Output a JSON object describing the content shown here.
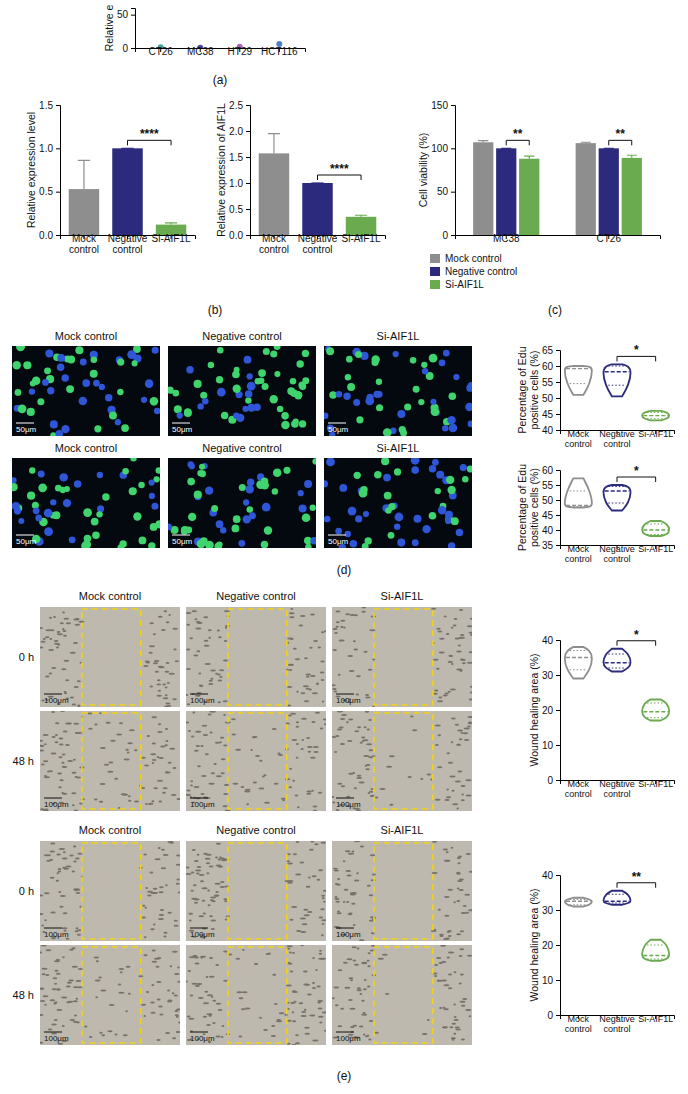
{
  "panel_labels": [
    "(a)",
    "(b)",
    "(c)",
    "(d)",
    "(e)"
  ],
  "image_grids": [
    {
      "column_titles": [
        "Mock control",
        "Negative control",
        "Si-AIF1L"
      ],
      "scale_bar": "50μm"
    },
    {
      "column_titles": [
        "Mock control",
        "Negative control",
        "Si-AIF1L"
      ],
      "scale_bar": "50μm"
    },
    {
      "column_titles": [
        "Mock control",
        "Negative control",
        "Si-AIF1L"
      ],
      "row_labels": [
        "0 h",
        "48 h"
      ],
      "scale_bar": "100μm"
    },
    {
      "column_titles": [
        "Mock control",
        "Negative control",
        "Si-AIF1L"
      ],
      "row_labels": [
        "0 h",
        "48 h"
      ],
      "scale_bar": "100μm"
    }
  ],
  "chart_data": [
    {
      "type": "dot",
      "y_label": "Relative e",
      "categories": [
        "CT26",
        "MC38",
        "HT29",
        "HCT116"
      ],
      "values": [
        1,
        0.5,
        2,
        6
      ],
      "errors": [
        0.6,
        0.3,
        1,
        3
      ],
      "colors": [
        "#3fa89c",
        "#4b4aa0",
        "#b066b0",
        "#4c82c4"
      ],
      "ylim": [
        0,
        60
      ],
      "yticks": [
        0,
        50
      ]
    },
    {
      "type": "bar",
      "y_label": "Relative expression level",
      "categories": [
        "Mock control",
        "Negative control",
        "Si-AIF1L"
      ],
      "values": [
        0.53,
        1,
        0.12
      ],
      "errors": [
        0.33,
        0,
        0.02
      ],
      "colors": [
        "#8e8e8e",
        "#2b2a7d",
        "#6aab4f"
      ],
      "ylim": [
        0,
        1.5
      ],
      "yticks": [
        {
          "value": 0,
          "label": "0.0"
        },
        0.5,
        {
          "value": 1,
          "label": "1.0"
        },
        1.5
      ],
      "annotations": [
        {
          "text": "****",
          "pair": [
            1,
            2
          ]
        }
      ]
    },
    {
      "type": "bar",
      "y_label": "Relative expression of AIF1L",
      "categories": [
        "Mock control",
        "Negative control",
        "Si-AIF1L"
      ],
      "values": [
        1.57,
        1,
        0.35
      ],
      "errors": [
        0.38,
        0,
        0.03
      ],
      "colors": [
        "#8e8e8e",
        "#2b2a7d",
        "#6aab4f"
      ],
      "ylim": [
        0,
        2.5
      ],
      "yticks": [
        {
          "value": 0,
          "label": "0.0"
        },
        0.5,
        {
          "value": 1,
          "label": "1.0"
        },
        1.5,
        {
          "value": 2,
          "label": "2.0"
        },
        2.5
      ],
      "annotations": [
        {
          "text": "****",
          "pair": [
            1,
            2
          ]
        }
      ]
    },
    {
      "type": "bar",
      "y_label": "Cell viability (%)",
      "categories": [
        "MC38",
        "CT26"
      ],
      "series": [
        {
          "name": "Mock control",
          "color": "#8e8e8e",
          "values": [
            107,
            106
          ],
          "errors": [
            2,
            1
          ]
        },
        {
          "name": "Negative control",
          "color": "#2b2a7d",
          "values": [
            100,
            100
          ],
          "errors": [
            0,
            0
          ]
        },
        {
          "name": "Si-AIF1L",
          "color": "#6aab4f",
          "values": [
            88,
            89
          ],
          "errors": [
            3,
            3
          ]
        }
      ],
      "ylim": [
        0,
        150
      ],
      "yticks": [
        0,
        50,
        100,
        150
      ],
      "legend": "bottom",
      "annotations": [
        {
          "text": "**",
          "group": 0,
          "pair": [
            1,
            2
          ]
        },
        {
          "text": "**",
          "group": 1,
          "pair": [
            1,
            2
          ]
        }
      ]
    },
    {
      "type": "violin",
      "y_label": "Percentage of Edu positive cells (%)",
      "categories": [
        "Mock control",
        "Negative control",
        "Si-AIF1L"
      ],
      "colors": [
        "#8e8e8e",
        "#2b2a7d",
        "#6aab4f"
      ],
      "min": [
        51,
        50.5,
        43
      ],
      "q1": [
        54.5,
        54,
        43.5
      ],
      "median": [
        59.2,
        58.2,
        44.5
      ],
      "q3": [
        59.8,
        60,
        45.5
      ],
      "max": [
        60,
        60.5,
        46
      ],
      "ylim": [
        40,
        65
      ],
      "yticks": [
        40,
        45,
        50,
        55,
        60,
        65
      ],
      "annotations": [
        {
          "text": "*",
          "pair": [
            1,
            2
          ]
        }
      ]
    },
    {
      "type": "violin",
      "y_label": "Percentage of Edu positive cells (%)",
      "categories": [
        "Mock control",
        "Negative control",
        "Si-AIF1L"
      ],
      "colors": [
        "#8e8e8e",
        "#2b2a7d",
        "#6aab4f"
      ],
      "min": [
        47.5,
        46.5,
        38
      ],
      "q1": [
        47.8,
        49,
        38.5
      ],
      "median": [
        48.2,
        53,
        40
      ],
      "q3": [
        53,
        54.5,
        42
      ],
      "max": [
        57.2,
        55,
        43
      ],
      "ylim": [
        35,
        60
      ],
      "yticks": [
        35,
        40,
        45,
        50,
        55,
        60
      ],
      "annotations": [
        {
          "text": "*",
          "pair": [
            1,
            2
          ]
        }
      ]
    },
    {
      "type": "violin",
      "y_label": "Wound healing area (%)",
      "categories": [
        "Mock control",
        "Negative control",
        "Si-AIF1L"
      ],
      "colors": [
        "#8e8e8e",
        "#2b2a7d",
        "#6aab4f"
      ],
      "min": [
        29,
        31,
        17
      ],
      "q1": [
        31.5,
        32,
        17.8
      ],
      "median": [
        35,
        33.5,
        19.5
      ],
      "q3": [
        37,
        36,
        22
      ],
      "max": [
        38,
        37.5,
        23
      ],
      "ylim": [
        0,
        40
      ],
      "yticks": [
        0,
        10,
        20,
        30,
        40
      ],
      "annotations": [
        {
          "text": "*",
          "pair": [
            1,
            2
          ]
        }
      ]
    },
    {
      "type": "violin",
      "y_label": "Wound healing area (%)",
      "categories": [
        "Mock control",
        "Negative control",
        "Si-AIF1L"
      ],
      "colors": [
        "#8e8e8e",
        "#2b2a7d",
        "#6aab4f"
      ],
      "min": [
        31,
        31.5,
        15.5
      ],
      "q1": [
        31.5,
        32,
        16
      ],
      "median": [
        32.5,
        32.5,
        17
      ],
      "q3": [
        33,
        34.5,
        20
      ],
      "max": [
        33.5,
        35.5,
        21.5
      ],
      "ylim": [
        0,
        40
      ],
      "yticks": [
        0,
        10,
        20,
        30,
        40
      ],
      "annotations": [
        {
          "text": "**",
          "pair": [
            1,
            2
          ]
        }
      ]
    }
  ]
}
